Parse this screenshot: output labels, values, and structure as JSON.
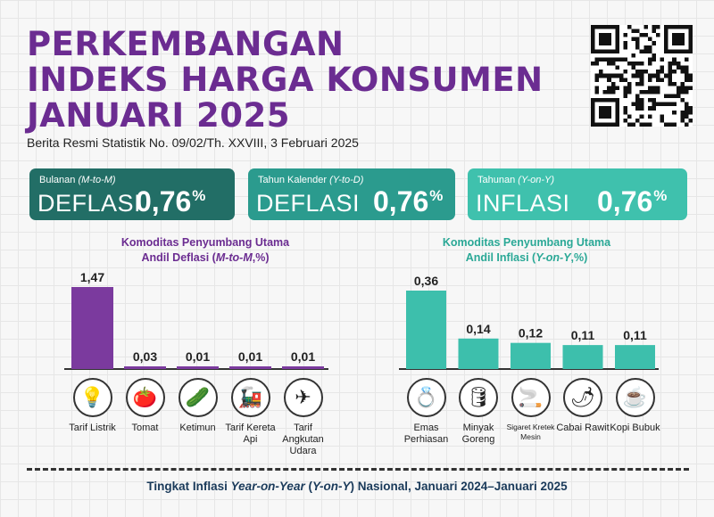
{
  "header": {
    "title_lines": [
      "PERKEMBANGAN",
      "INDEKS HARGA KONSUMEN",
      "JANUARI 2025"
    ],
    "subtitle": "Berita Resmi Statistik No. 09/02/Th. XXVIII, 3 Februari 2025"
  },
  "cards": {
    "monthly": {
      "label": "Bulanan",
      "label_code": "(M-to-M)",
      "word": "DEFLASI",
      "value": "0,76",
      "unit": "%"
    },
    "ytd": {
      "label": "Tahun Kalender",
      "label_code": "(Y-to-D)",
      "word": "DEFLASI",
      "value": "0,76",
      "unit": "%"
    },
    "yoy": {
      "label": "Tahunan",
      "label_code": "(Y-on-Y)",
      "word": "INFLASI",
      "value": "0,76",
      "unit": "%"
    }
  },
  "chart_data": [
    {
      "type": "bar",
      "title": "Komoditas Penyumbang Utama Andil Deflasi (M-to-M,%)",
      "title_line1": "Komoditas Penyumbang Utama",
      "title_line2_pre": "Andil Deflasi (",
      "title_line2_it": "M-to-M",
      "title_line2_post": ",%)",
      "categories": [
        "Tarif Listrik",
        "Tomat",
        "Ketimun",
        "Tarif Kereta Api",
        "Tarif Angkutan Udara"
      ],
      "values": [
        1.47,
        0.03,
        0.01,
        0.01,
        0.01
      ],
      "value_labels": [
        "1,47",
        "0,03",
        "0,01",
        "0,01",
        "0,01"
      ],
      "icons": [
        "lightbulb-icon",
        "tomato-icon",
        "cucumber-icon",
        "train-icon",
        "airplane-icon"
      ],
      "color": "#7b3a9e"
    },
    {
      "type": "bar",
      "title": "Komoditas Penyumbang Utama Andil Inflasi (Y-on-Y,%)",
      "title_line1": "Komoditas Penyumbang Utama",
      "title_line2_pre": "Andil Inflasi (",
      "title_line2_it": "Y-on-Y",
      "title_line2_post": ",%)",
      "categories": [
        "Emas Perhiasan",
        "Minyak Goreng",
        "Sigaret Kretek Mesin",
        "Cabai Rawit",
        "Kopi Bubuk"
      ],
      "values": [
        0.36,
        0.14,
        0.12,
        0.11,
        0.11
      ],
      "value_labels": [
        "0,36",
        "0,14",
        "0,12",
        "0,11",
        "0,11"
      ],
      "icons": [
        "gold-jewelry-icon",
        "cooking-oil-icon",
        "cigarette-icon",
        "chili-icon",
        "coffee-icon"
      ],
      "color": "#3dbfac"
    }
  ],
  "footer": {
    "pre": "Tingkat Inflasi ",
    "it1": "Year-on-Year",
    "mid1": " (",
    "it2": "Y-on-Y",
    "post": ") Nasional, Januari 2024–Januari 2025"
  },
  "colors": {
    "purple": "#6b2c91",
    "teal_dark": "#226e66",
    "teal_mid": "#2b9b8e",
    "teal_light": "#3fc1ad"
  }
}
